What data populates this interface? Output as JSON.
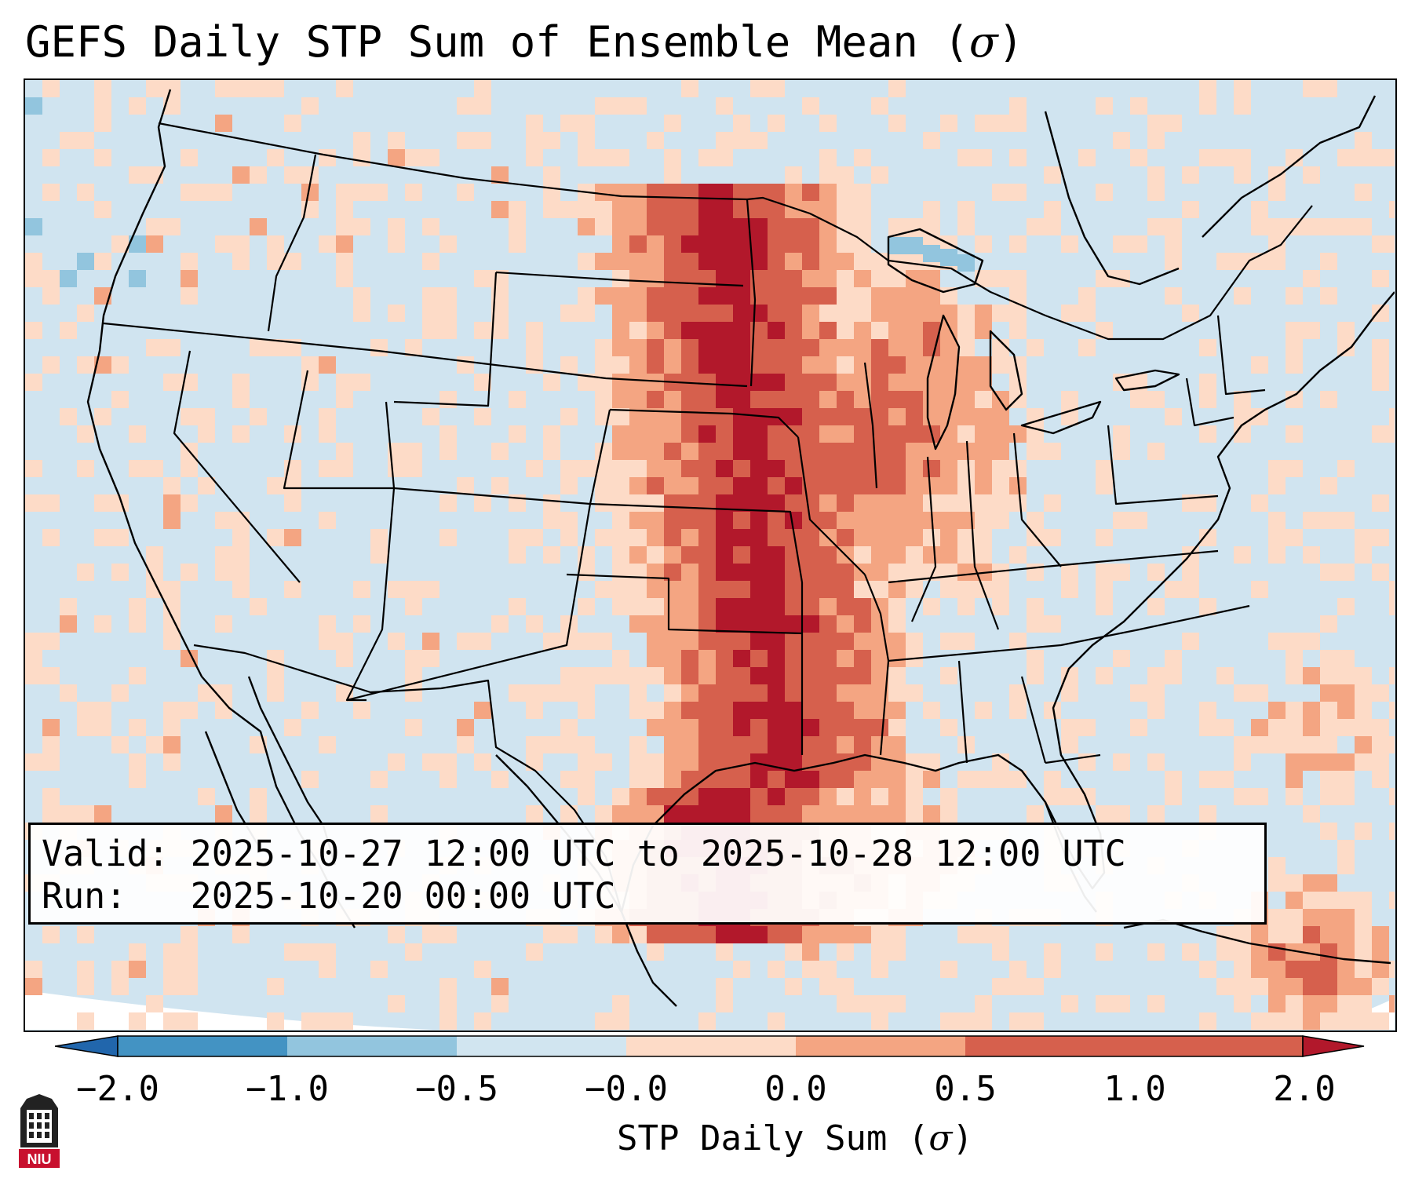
{
  "title": {
    "prefix": "GEFS Daily STP Sum of Ensemble Mean (",
    "symbol": "σ",
    "suffix": ")"
  },
  "info": {
    "valid_label": "Valid:",
    "valid_value": "2025-10-27 12:00 UTC to 2025-10-28 12:00 UTC",
    "run_label": "Run:",
    "run_value": "2025-10-20 00:00 UTC"
  },
  "colorbar": {
    "ticks": [
      "−2.0",
      "−1.0",
      "−0.5",
      "−0.0",
      "0.0",
      "0.5",
      "1.0",
      "2.0"
    ],
    "label_prefix": "STP Daily Sum (",
    "label_symbol": "σ",
    "label_suffix": ")",
    "colors": [
      "#2166ac",
      "#4393c3",
      "#92c5de",
      "#d1e5f0",
      "#fddbc7",
      "#f4a582",
      "#d6604d",
      "#b2182b"
    ]
  },
  "logo": {
    "text": "NIU",
    "color": "#c8102e"
  },
  "map": {
    "ocean_color": "#d0e4f0",
    "land_color": "#d0e4f0",
    "border_color": "#000000"
  }
}
